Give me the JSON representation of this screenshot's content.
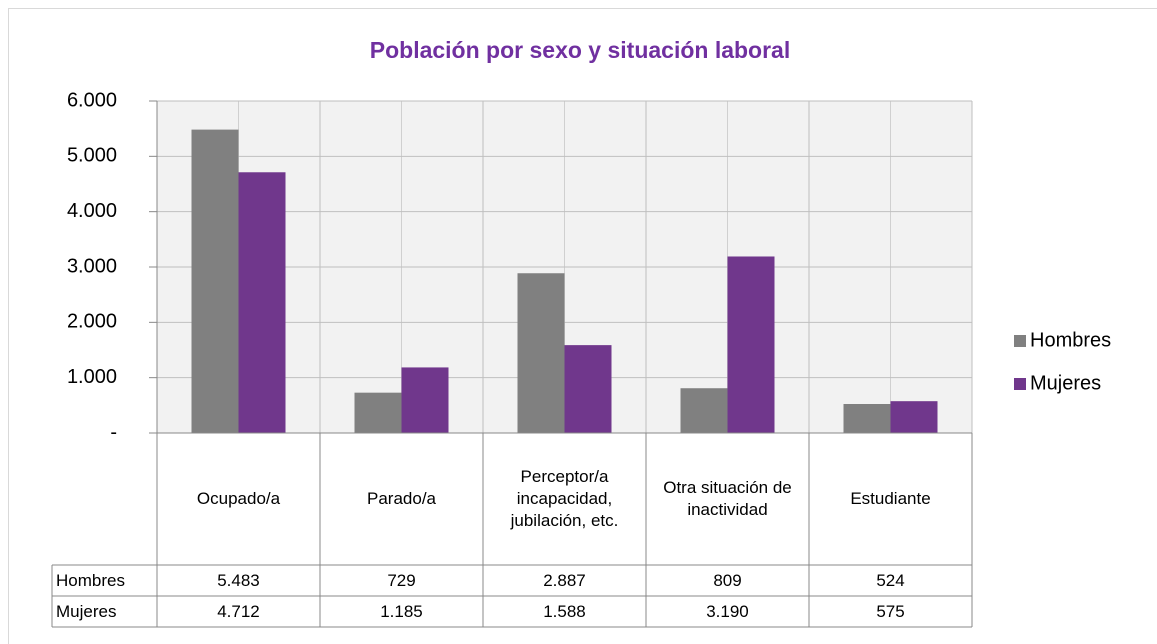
{
  "chart_data": {
    "type": "bar",
    "title": "Población por sexo y situación laboral",
    "categories": [
      "Ocupado/a",
      "Parado/a",
      "Perceptor/a incapacidad, jubilación, etc.",
      "Otra situación de inactividad",
      "Estudiante"
    ],
    "series": [
      {
        "name": "Hombres",
        "color": "#808080",
        "values": [
          5483,
          729,
          2887,
          809,
          524
        ],
        "value_labels": [
          "5.483",
          "729",
          "2.887",
          "809",
          "524"
        ]
      },
      {
        "name": "Mujeres",
        "color": "#70378c",
        "values": [
          4712,
          1185,
          1588,
          3190,
          575
        ],
        "value_labels": [
          "4.712",
          "1.185",
          "1.588",
          "3.190",
          "575"
        ]
      }
    ],
    "ylim": [
      0,
      6000
    ],
    "yticks": [
      {
        "value": 0,
        "label": "-"
      },
      {
        "value": 1000,
        "label": "1.000"
      },
      {
        "value": 2000,
        "label": "2.000"
      },
      {
        "value": 3000,
        "label": "3.000"
      },
      {
        "value": 4000,
        "label": "4.000"
      },
      {
        "value": 5000,
        "label": "5.000"
      },
      {
        "value": 6000,
        "label": "6.000"
      }
    ],
    "grid": true,
    "legend": "right"
  }
}
